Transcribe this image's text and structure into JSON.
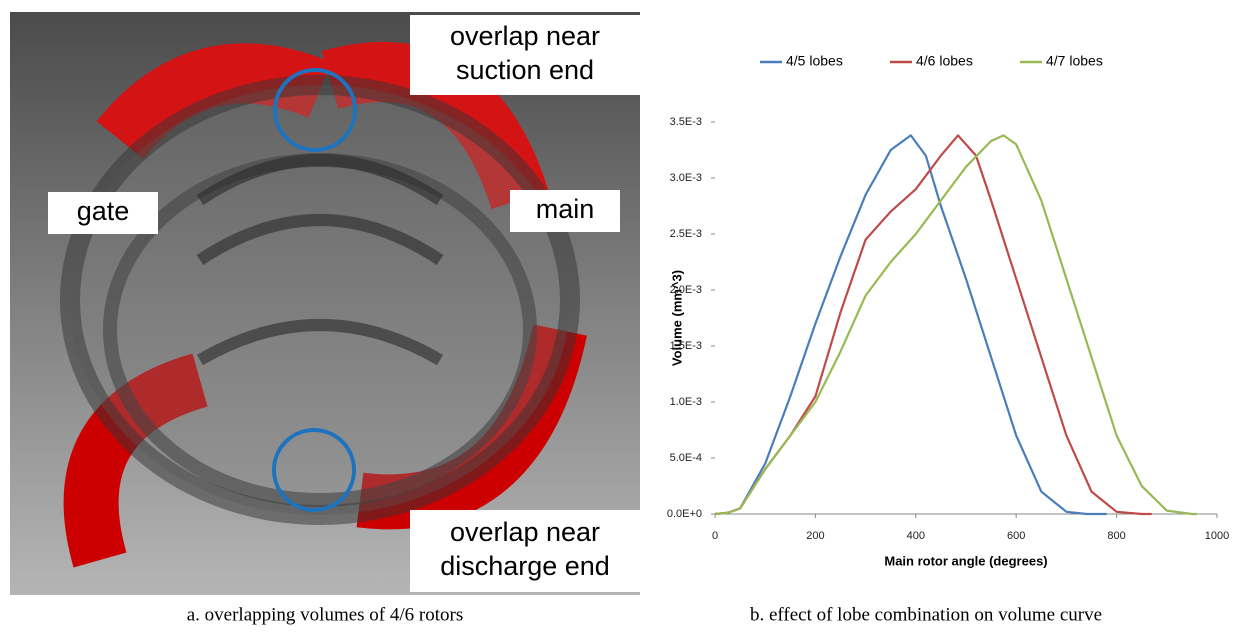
{
  "panel_a": {
    "labels": [
      [
        "overlap near",
        "suction end"
      ],
      [
        "gate"
      ],
      [
        "main"
      ],
      [
        "overlap near",
        "discharge end"
      ]
    ],
    "caption": "a. overlapping volumes of 4/6 rotors"
  },
  "chart_data": {
    "type": "line",
    "caption": "b. effect of lobe combination on volume curve",
    "x_label": "Main rotor angle (degrees)",
    "y_label": "Volume (mm^3)",
    "xlim": [
      0,
      1000
    ],
    "xticks": [
      0,
      200,
      400,
      600,
      800,
      1000
    ],
    "ylim": [
      0,
      0.0035
    ],
    "yticks": [
      {
        "value": 0,
        "label": "0.0E+0"
      },
      {
        "value": 0.0005,
        "label": "5.0E-4"
      },
      {
        "value": 0.001,
        "label": "1.0E-3"
      },
      {
        "value": 0.0015,
        "label": "1.5E-3"
      },
      {
        "value": 0.002,
        "label": "2.0E-3"
      },
      {
        "value": 0.0025,
        "label": "2.5E-3"
      },
      {
        "value": 0.003,
        "label": "3.0E-3"
      },
      {
        "value": 0.0035,
        "label": "3.5E-3"
      }
    ],
    "grid": false,
    "legend": "top",
    "series": [
      {
        "name": "4/5 lobes",
        "color": "#4a7ebb",
        "x": [
          0,
          25,
          50,
          100,
          150,
          200,
          250,
          300,
          350,
          390,
          420,
          450,
          500,
          550,
          600,
          650,
          700,
          740,
          780
        ],
        "values": [
          0,
          1e-05,
          5e-05,
          0.00045,
          0.00105,
          0.0017,
          0.0023,
          0.00285,
          0.00325,
          0.00338,
          0.0032,
          0.00275,
          0.0021,
          0.0014,
          0.0007,
          0.0002,
          2e-05,
          0,
          0
        ]
      },
      {
        "name": "4/6 lobes",
        "color": "#be4b48",
        "x": [
          0,
          25,
          50,
          100,
          150,
          200,
          250,
          300,
          350,
          400,
          450,
          484,
          520,
          550,
          600,
          650,
          700,
          750,
          800,
          850,
          870
        ],
        "values": [
          0,
          1e-05,
          5e-05,
          0.0004,
          0.0007,
          0.00105,
          0.0018,
          0.00245,
          0.0027,
          0.0029,
          0.0032,
          0.00338,
          0.0032,
          0.0028,
          0.0021,
          0.0014,
          0.0007,
          0.0002,
          2e-05,
          0,
          0
        ]
      },
      {
        "name": "4/7 lobes",
        "color": "#98b954",
        "x": [
          0,
          25,
          50,
          100,
          150,
          200,
          250,
          300,
          350,
          400,
          450,
          500,
          550,
          575,
          600,
          650,
          700,
          750,
          800,
          850,
          900,
          950,
          960
        ],
        "values": [
          0,
          1e-05,
          5e-05,
          0.0004,
          0.0007,
          0.001,
          0.00145,
          0.00195,
          0.00225,
          0.0025,
          0.0028,
          0.0031,
          0.00333,
          0.00338,
          0.0033,
          0.0028,
          0.0021,
          0.0014,
          0.0007,
          0.00025,
          3e-05,
          0,
          0
        ]
      }
    ]
  }
}
